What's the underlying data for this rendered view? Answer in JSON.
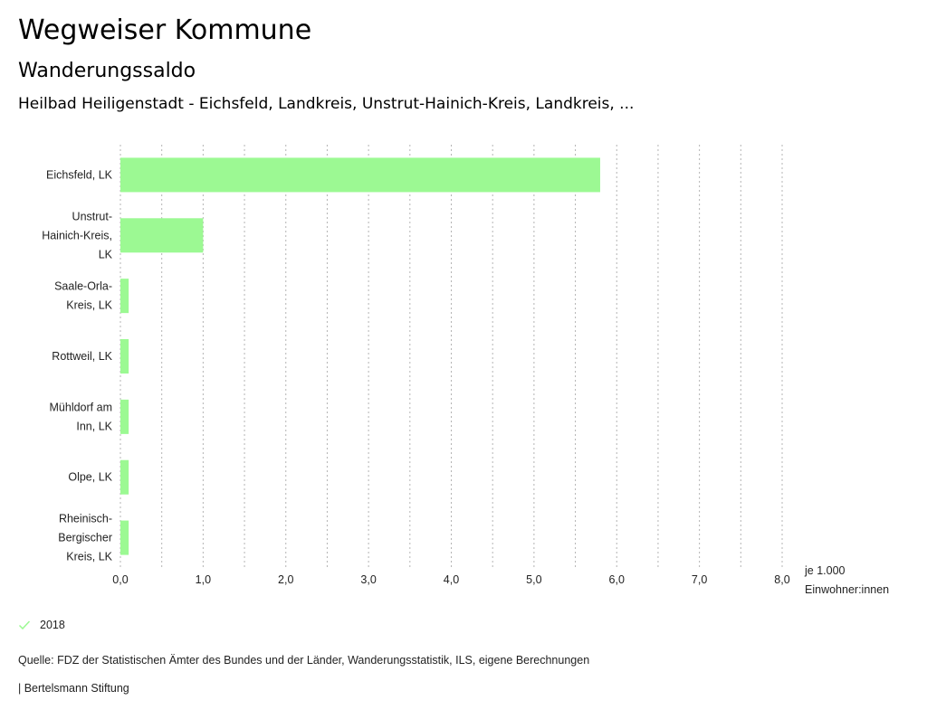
{
  "header": {
    "title": "Wegweiser Kommune",
    "subtitle": "Wanderungssaldo",
    "selection": "Heilbad Heiligenstadt - Eichsfeld, Landkreis, Unstrut-Hainich-Kreis, Landkreis, ..."
  },
  "chart_data": {
    "type": "bar",
    "orientation": "horizontal",
    "title": "Wanderungssaldo",
    "categories": [
      [
        "Eichsfeld, LK"
      ],
      [
        "Unstrut-",
        "Hainich-Kreis,",
        "LK"
      ],
      [
        "Saale-Orla-",
        "Kreis, LK"
      ],
      [
        "Rottweil, LK"
      ],
      [
        "Mühldorf am",
        "Inn, LK"
      ],
      [
        "Olpe, LK"
      ],
      [
        "Rheinisch-",
        "Bergischer",
        "Kreis, LK"
      ]
    ],
    "series": [
      {
        "name": "2018",
        "color": "#9cf993",
        "values": [
          5.8,
          1.0,
          0.1,
          0.1,
          0.1,
          0.1,
          0.1
        ]
      }
    ],
    "xlabel": "je 1.000 Einwohner:innen",
    "xlabel_lines": [
      "je 1.000",
      "Einwohner:innen"
    ],
    "xlim": [
      0,
      8
    ],
    "xticks": [
      0,
      1,
      2,
      3,
      4,
      5,
      6,
      7,
      8
    ],
    "xtick_labels": [
      "0,0",
      "1,0",
      "2,0",
      "3,0",
      "4,0",
      "5,0",
      "6,0",
      "7,0",
      "8,0"
    ],
    "minor_grid_step": 0.5,
    "grid": true,
    "legend": {
      "position": "bottom-left"
    }
  },
  "legend": {
    "label": "2018",
    "icon": "check-icon",
    "color": "#9cf993"
  },
  "footer": {
    "source": "Quelle: FDZ der Statistischen Ämter des Bundes und der Länder, Wanderungsstatistik, ILS, eigene Berechnungen",
    "brand": "| Bertelsmann Stiftung"
  }
}
